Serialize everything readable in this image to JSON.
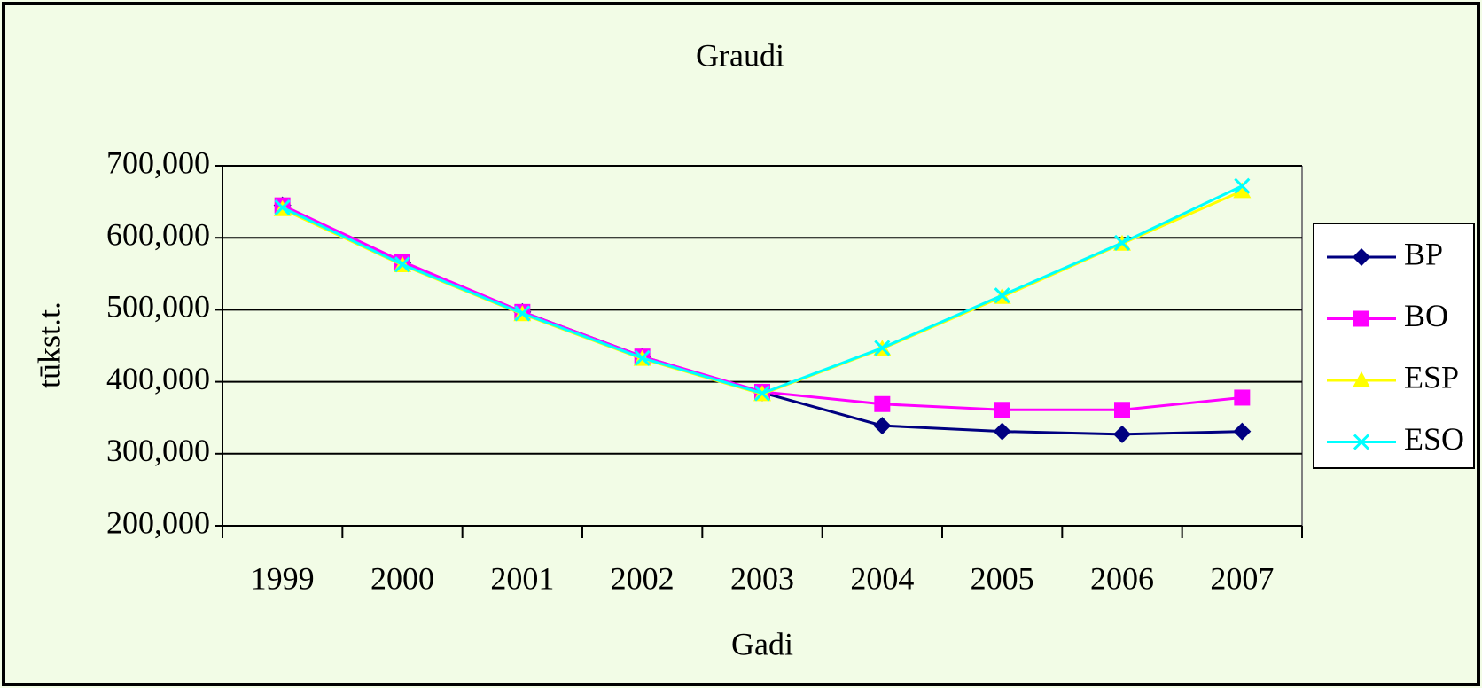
{
  "chart_data": {
    "type": "line",
    "title": "Graudi",
    "x_label": "Gadi",
    "y_label": "tūkst.t.",
    "categories": [
      "1999",
      "2000",
      "2001",
      "2002",
      "2003",
      "2004",
      "2005",
      "2006",
      "2007"
    ],
    "series": [
      {
        "name": "BP",
        "color": "#000080",
        "marker": "diamond",
        "values": [
          645000,
          565000,
          497000,
          435000,
          385000,
          339000,
          331000,
          327000,
          331000
        ]
      },
      {
        "name": "BO",
        "color": "#ff00ff",
        "marker": "square",
        "values": [
          645000,
          567000,
          497000,
          435000,
          386000,
          369000,
          361000,
          361000,
          378000
        ]
      },
      {
        "name": "ESP",
        "color": "#ffff00",
        "marker": "triangle",
        "values": [
          640000,
          562000,
          494000,
          432000,
          383000,
          446000,
          518000,
          592000,
          665000
        ]
      },
      {
        "name": "ESO",
        "color": "#00ffff",
        "marker": "x",
        "values": [
          642000,
          563000,
          495000,
          433000,
          384000,
          447000,
          520000,
          593000,
          672000
        ]
      }
    ],
    "ylim": [
      200000,
      700000
    ],
    "yticks": [
      {
        "value": 200000,
        "label": "200,000"
      },
      {
        "value": 300000,
        "label": "300,000"
      },
      {
        "value": 400000,
        "label": "400,000"
      },
      {
        "value": 500000,
        "label": "500,000"
      },
      {
        "value": 600000,
        "label": "600,000"
      },
      {
        "value": 700000,
        "label": "700,000"
      }
    ],
    "grid": true,
    "legend": "right"
  }
}
